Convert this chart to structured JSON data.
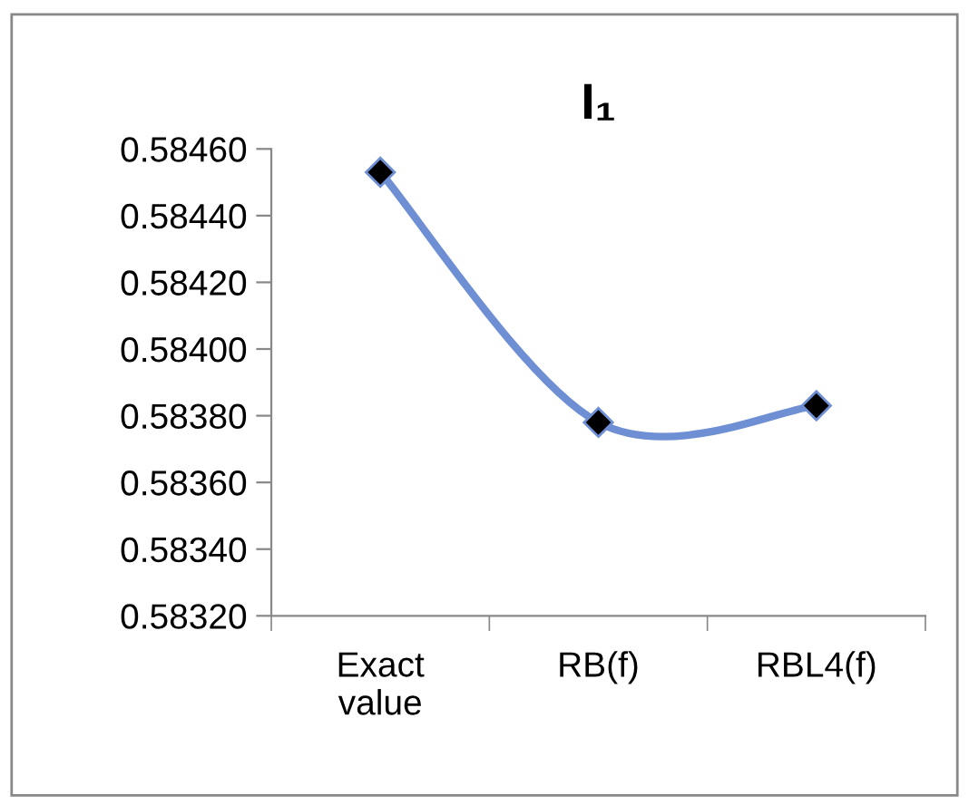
{
  "chart_data": {
    "type": "line",
    "title": "I₁",
    "categories": [
      "Exact value",
      "RB(f)",
      "RBL4(f)"
    ],
    "series": [
      {
        "color": "#6f8fd4",
        "values": [
          0.58453,
          0.58378,
          0.58383
        ]
      }
    ],
    "ylim": [
      0.5832,
      0.5846
    ],
    "yticks": [
      {
        "value": 0.5832,
        "label": "0.58320"
      },
      {
        "value": 0.5834,
        "label": "0.58340"
      },
      {
        "value": 0.5836,
        "label": "0.58360"
      },
      {
        "value": 0.5838,
        "label": "0.58380"
      },
      {
        "value": 0.584,
        "label": "0.58400"
      },
      {
        "value": 0.5842,
        "label": "0.58420"
      },
      {
        "value": 0.5844,
        "label": "0.58440"
      },
      {
        "value": 0.5846,
        "label": "0.58460"
      }
    ],
    "marker": "diamond",
    "grid": false,
    "legend": false
  }
}
